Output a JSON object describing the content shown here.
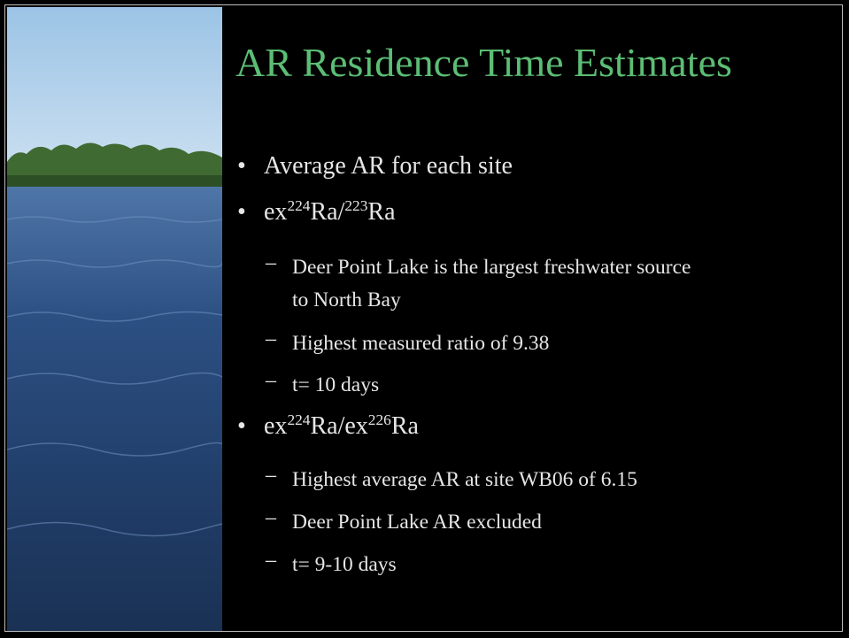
{
  "title": "AR Residence Time Estimates",
  "items": [
    {
      "level": 1,
      "text": "Average AR for each site"
    },
    {
      "level": 1,
      "parts": [
        {
          "text": "ex"
        },
        {
          "sup": "224"
        },
        {
          "text": "Ra/"
        },
        {
          "sup": "223"
        },
        {
          "text": "Ra"
        }
      ]
    },
    {
      "level": 2,
      "lines": [
        "Deer Point Lake is the largest freshwater source",
        "to North Bay"
      ]
    },
    {
      "level": 2,
      "text": "Highest measured ratio of 9.38"
    },
    {
      "level": 2,
      "text": "t= 10 days"
    },
    {
      "level": 1,
      "parts": [
        {
          "text": "ex"
        },
        {
          "sup": "224"
        },
        {
          "text": "Ra/ex"
        },
        {
          "sup": "226"
        },
        {
          "text": "Ra"
        }
      ]
    },
    {
      "level": 2,
      "text": "Highest average AR at site WB06 of 6.15"
    },
    {
      "level": 2,
      "text": "Deer Point Lake AR excluded"
    },
    {
      "level": 2,
      "text": "t= 9-10 days"
    }
  ]
}
